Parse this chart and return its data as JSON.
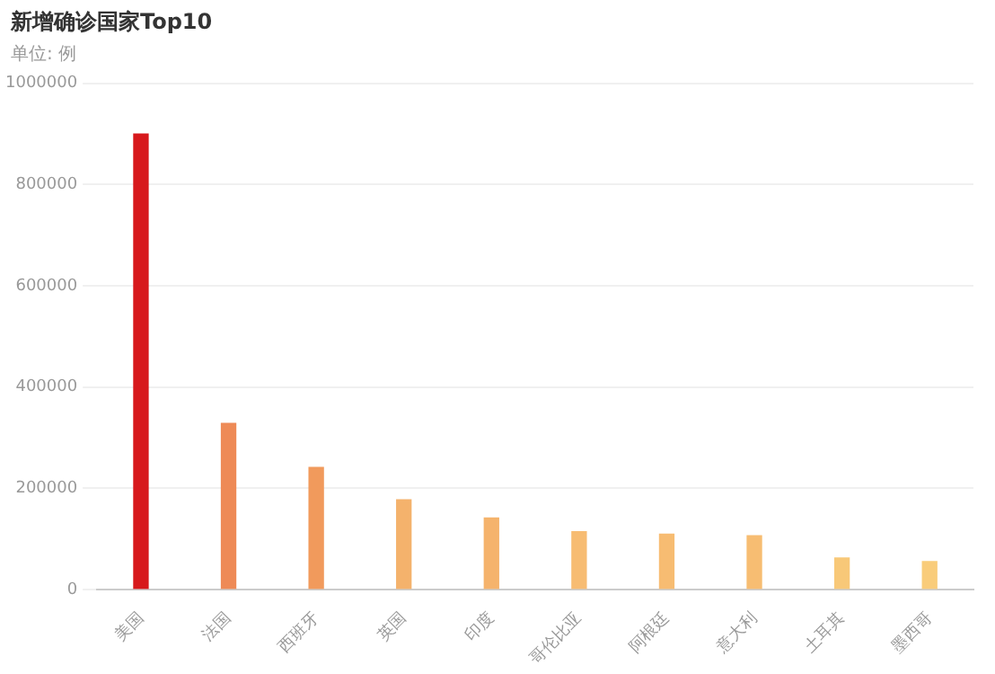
{
  "chart_data": {
    "type": "bar",
    "title": "新增确诊国家Top10",
    "subtitle": "单位: 例",
    "categories": [
      "美国",
      "法国",
      "西班牙",
      "英国",
      "印度",
      "哥伦比亚",
      "阿根廷",
      "意大利",
      "土耳其",
      "墨西哥"
    ],
    "values": [
      900000,
      328000,
      241000,
      177000,
      141000,
      114000,
      109000,
      106000,
      62000,
      55000
    ],
    "colors": [
      "#d7191c",
      "#ee8a56",
      "#f19a5c",
      "#f4b26c",
      "#f5b36c",
      "#f7bc72",
      "#f7bc72",
      "#f7bd72",
      "#f8c878",
      "#f9cc7a"
    ],
    "ylim": [
      0,
      1000000
    ],
    "yticks": [
      0,
      200000,
      400000,
      600000,
      800000,
      1000000
    ],
    "grid": "y",
    "legend": false
  }
}
